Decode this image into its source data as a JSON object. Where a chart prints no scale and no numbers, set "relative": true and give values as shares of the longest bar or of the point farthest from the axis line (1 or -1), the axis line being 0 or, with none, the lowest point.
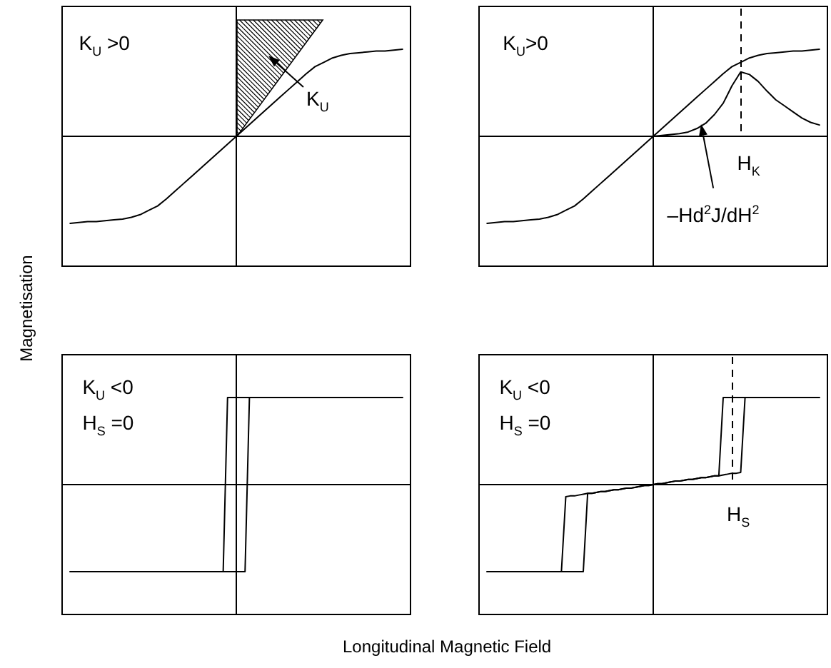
{
  "chart_data": [
    {
      "type": "line",
      "relative": true,
      "ylabel": "Magnetisation",
      "annotations": [
        "K$_{U}$ >0",
        "K$_{U}$"
      ],
      "categories": [
        null,
        null,
        null,
        null,
        null,
        null,
        null,
        null,
        null,
        null,
        null,
        null,
        null,
        null,
        null,
        null,
        null,
        null,
        null,
        null,
        null,
        null,
        null,
        null,
        null,
        null,
        null,
        null,
        null,
        null,
        null,
        null,
        null,
        null,
        null,
        null,
        null,
        null,
        null,
        null,
        null
      ],
      "series": [
        {
          "color": "#000000",
          "values": [
            null,
            -1,
            -0.99,
            -0.98,
            -0.98,
            -0.97,
            -0.96,
            -0.95,
            -0.93,
            -0.9,
            -0.85,
            -0.8,
            -0.72,
            -0.63,
            -0.54,
            -0.45,
            -0.36,
            -0.27,
            -0.18,
            -0.09,
            0,
            0.09,
            0.18,
            0.27,
            0.36,
            0.45,
            0.54,
            0.63,
            0.72,
            0.8,
            0.85,
            0.9,
            0.93,
            0.95,
            0.96,
            0.97,
            0.98,
            0.98,
            0.99,
            1,
            null
          ]
        }
      ]
    },
    {
      "type": "line",
      "relative": true,
      "annotations": [
        "K$_{U}$>0",
        "H$_{K}$"
      ],
      "categories": [
        null,
        null,
        null,
        null,
        null,
        null,
        null,
        null,
        null,
        null,
        null,
        null,
        null,
        null,
        null,
        null,
        null,
        null,
        null,
        null,
        null,
        null,
        null,
        null,
        null,
        null,
        null,
        null,
        null,
        null,
        null,
        null,
        null,
        null,
        null,
        null,
        null,
        null,
        null,
        null,
        null
      ],
      "series": [
        {
          "color": "#000000",
          "values": [
            null,
            -1,
            -0.99,
            -0.98,
            -0.98,
            -0.97,
            -0.96,
            -0.95,
            -0.93,
            -0.9,
            -0.85,
            -0.8,
            -0.72,
            -0.63,
            -0.54,
            -0.45,
            -0.36,
            -0.27,
            -0.18,
            -0.09,
            0,
            0.09,
            0.18,
            0.27,
            0.36,
            0.45,
            0.54,
            0.63,
            0.72,
            0.8,
            0.85,
            0.9,
            0.93,
            0.95,
            0.96,
            0.97,
            0.98,
            0.98,
            0.99,
            1,
            null
          ]
        },
        {
          "name": "–Hd$^{2}$J/dH$^{2}$",
          "color": "#000000",
          "values": [
            null,
            null,
            null,
            null,
            null,
            null,
            null,
            null,
            null,
            null,
            null,
            null,
            null,
            null,
            null,
            null,
            null,
            null,
            null,
            null,
            0,
            0.01,
            0.02,
            0.03,
            0.05,
            0.09,
            0.15,
            0.25,
            0.38,
            0.58,
            0.74,
            0.71,
            0.63,
            0.52,
            0.42,
            0.35,
            0.28,
            0.21,
            0.16,
            0.13,
            null
          ]
        }
      ]
    },
    {
      "type": "line",
      "relative": true,
      "xlabel": "Longitudinal Magnetic Field",
      "annotations": [
        "K$_{U}$ <0",
        "H$_{S}$ =0"
      ],
      "categories": [
        null,
        null,
        null,
        null,
        null,
        null,
        null,
        null,
        null,
        null,
        null,
        null,
        null,
        null,
        null,
        null,
        null,
        null,
        null,
        null,
        null,
        null,
        null,
        null,
        null,
        null,
        null,
        null,
        null,
        null,
        null,
        null,
        null,
        null,
        null,
        null,
        null,
        null,
        null,
        null,
        null,
        null,
        null,
        null,
        null,
        null,
        null,
        null,
        null,
        null,
        null,
        null,
        null,
        null,
        null,
        null,
        null,
        null,
        null,
        null,
        null,
        null,
        null,
        null,
        null,
        null,
        null,
        null,
        null,
        null,
        null,
        null,
        null,
        null,
        null,
        null,
        null,
        null,
        null,
        null,
        null
      ],
      "series": [
        {
          "color": "#000000",
          "values": [
            null,
            null,
            -1,
            -1,
            -1,
            -1,
            -1,
            -1,
            -1,
            -1,
            -1,
            -1,
            -1,
            -1,
            -1,
            -1,
            -1,
            -1,
            -1,
            -1,
            -1,
            -1,
            -1,
            -1,
            -1,
            -1,
            -1,
            -1,
            -1,
            -1,
            -1,
            -1,
            -1,
            -1,
            -1,
            -1,
            -1,
            -1,
            -1,
            -1,
            -1,
            -1,
            -1,
            1,
            1,
            1,
            1,
            1,
            1,
            1,
            1,
            1,
            1,
            1,
            1,
            1,
            1,
            1,
            1,
            1,
            1,
            1,
            1,
            1,
            1,
            1,
            1,
            1,
            1,
            1,
            1,
            1,
            1,
            1,
            1,
            1,
            1,
            1,
            1,
            null,
            null
          ]
        },
        {
          "color": "#000000",
          "values": [
            null,
            null,
            -1,
            -1,
            -1,
            -1,
            -1,
            -1,
            -1,
            -1,
            -1,
            -1,
            -1,
            -1,
            -1,
            -1,
            -1,
            -1,
            -1,
            -1,
            -1,
            -1,
            -1,
            -1,
            -1,
            -1,
            -1,
            -1,
            -1,
            -1,
            -1,
            -1,
            -1,
            -1,
            -1,
            -1,
            -1,
            -1,
            1,
            1,
            1,
            1,
            1,
            1,
            1,
            1,
            1,
            1,
            1,
            1,
            1,
            1,
            1,
            1,
            1,
            1,
            1,
            1,
            1,
            1,
            1,
            1,
            1,
            1,
            1,
            1,
            1,
            1,
            1,
            1,
            1,
            1,
            1,
            1,
            1,
            1,
            1,
            1,
            1,
            null,
            null
          ]
        }
      ]
    },
    {
      "type": "line",
      "relative": true,
      "annotations": [
        "K$_{U}$ <0",
        "H$_{S}$ =0",
        "H$_{S}$"
      ],
      "categories": [
        null,
        null,
        null,
        null,
        null,
        null,
        null,
        null,
        null,
        null,
        null,
        null,
        null,
        null,
        null,
        null,
        null,
        null,
        null,
        null,
        null,
        null,
        null,
        null,
        null,
        null,
        null,
        null,
        null,
        null,
        null,
        null,
        null,
        null,
        null,
        null,
        null,
        null,
        null,
        null,
        null,
        null,
        null,
        null,
        null,
        null,
        null,
        null,
        null,
        null,
        null,
        null,
        null,
        null,
        null,
        null,
        null,
        null,
        null,
        null,
        null,
        null,
        null,
        null,
        null,
        null,
        null,
        null,
        null,
        null,
        null,
        null,
        null,
        null,
        null,
        null,
        null,
        null,
        null,
        null,
        null
      ],
      "series": [
        {
          "color": "#000000",
          "values": [
            null,
            null,
            -1,
            -1,
            -1,
            -1,
            -1,
            -1,
            -1,
            -1,
            -1,
            -1,
            -1,
            -1,
            -1,
            -1,
            -1,
            -1,
            -1,
            -1,
            -1,
            -1,
            -1,
            -1,
            -1,
            -0.1,
            -0.1,
            -0.09,
            -0.08,
            -0.08,
            -0.07,
            -0.06,
            -0.06,
            -0.05,
            -0.04,
            -0.04,
            -0.03,
            -0.02,
            -0.01,
            -0.01,
            0,
            0.01,
            0.01,
            0.02,
            0.03,
            0.04,
            0.04,
            0.05,
            0.06,
            0.06,
            0.07,
            0.08,
            0.08,
            0.09,
            0.1,
            0.1,
            0.11,
            0.12,
            0.13,
            0.13,
            0.14,
            1,
            1,
            1,
            1,
            1,
            1,
            1,
            1,
            1,
            1,
            1,
            1,
            1,
            1,
            1,
            1,
            1,
            1,
            null,
            null
          ]
        },
        {
          "color": "#000000",
          "values": [
            null,
            null,
            -1,
            -1,
            -1,
            -1,
            -1,
            -1,
            -1,
            -1,
            -1,
            -1,
            -1,
            -1,
            -1,
            -1,
            -1,
            -1,
            -1,
            -1,
            -0.14,
            -0.13,
            -0.13,
            -0.12,
            -0.11,
            -0.1,
            -0.1,
            -0.09,
            -0.08,
            -0.08,
            -0.07,
            -0.06,
            -0.06,
            -0.05,
            -0.04,
            -0.04,
            -0.03,
            -0.02,
            -0.01,
            -0.01,
            0,
            0.01,
            0.01,
            0.02,
            0.03,
            0.04,
            0.04,
            0.05,
            0.06,
            0.06,
            0.07,
            0.08,
            0.08,
            0.09,
            0.1,
            0.1,
            1,
            1,
            1,
            1,
            1,
            1,
            1,
            1,
            1,
            1,
            1,
            1,
            1,
            1,
            1,
            1,
            1,
            1,
            1,
            1,
            1,
            1,
            1,
            null,
            null
          ]
        }
      ]
    }
  ]
}
